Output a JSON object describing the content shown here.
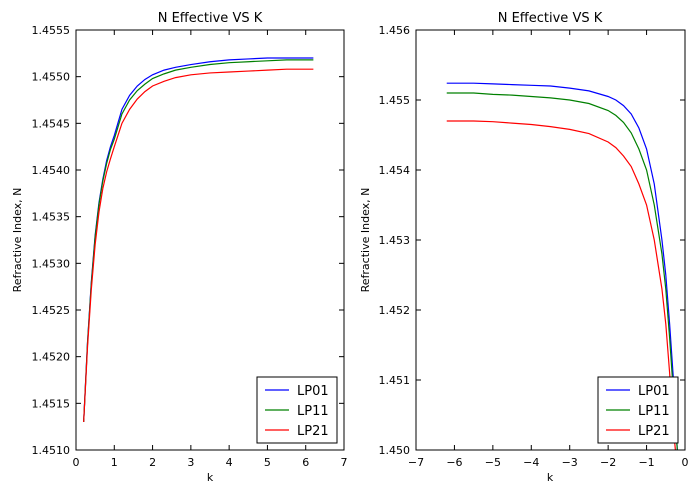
{
  "chart_data": [
    {
      "type": "line",
      "title": "N Effective VS K",
      "xlabel": "k",
      "ylabel": "Refractive Index, N",
      "xlim": [
        0,
        7
      ],
      "ylim": [
        1.451,
        1.4555
      ],
      "xticks": [
        "0",
        "1",
        "2",
        "3",
        "4",
        "5",
        "6",
        "7"
      ],
      "yticks": [
        "1.4510",
        "1.4515",
        "1.4520",
        "1.4525",
        "1.4530",
        "1.4535",
        "1.4540",
        "1.4545",
        "1.4550",
        "1.4555"
      ],
      "legend_position": "lower-right",
      "grid": false,
      "x": [
        0.2,
        0.3,
        0.4,
        0.5,
        0.6,
        0.7,
        0.8,
        0.9,
        1.0,
        1.2,
        1.4,
        1.6,
        1.8,
        2.0,
        2.3,
        2.6,
        3.0,
        3.5,
        4.0,
        4.5,
        5.0,
        5.5,
        6.2
      ],
      "series": [
        {
          "name": "LP01",
          "color": "#0000ff",
          "values": [
            1.4513,
            1.45215,
            1.4528,
            1.4533,
            1.45365,
            1.4539,
            1.4541,
            1.45425,
            1.45437,
            1.45465,
            1.4548,
            1.4549,
            1.45497,
            1.45502,
            1.45507,
            1.4551,
            1.45513,
            1.45516,
            1.45518,
            1.45519,
            1.4552,
            1.4552,
            1.4552
          ]
        },
        {
          "name": "LP11",
          "color": "#008000",
          "values": [
            1.4513,
            1.45214,
            1.45278,
            1.45328,
            1.45363,
            1.45388,
            1.45407,
            1.45422,
            1.45433,
            1.4546,
            1.45475,
            1.45485,
            1.45492,
            1.45498,
            1.45503,
            1.45507,
            1.4551,
            1.45513,
            1.45515,
            1.45516,
            1.45517,
            1.45518,
            1.45518
          ]
        },
        {
          "name": "LP21",
          "color": "#ff0000",
          "values": [
            1.4513,
            1.4521,
            1.45272,
            1.4532,
            1.45355,
            1.4538,
            1.45398,
            1.45412,
            1.45425,
            1.4545,
            1.45465,
            1.45476,
            1.45484,
            1.4549,
            1.45495,
            1.45499,
            1.45502,
            1.45504,
            1.45505,
            1.45506,
            1.45507,
            1.45508,
            1.45508
          ]
        }
      ]
    },
    {
      "type": "line",
      "title": "N Effective VS K",
      "xlabel": "k",
      "ylabel": "Refractive Index, N",
      "xlim": [
        -7,
        0
      ],
      "ylim": [
        1.45,
        1.456
      ],
      "xticks": [
        "−7",
        "−6",
        "−5",
        "−4",
        "−3",
        "−2",
        "−1",
        "0"
      ],
      "yticks": [
        "1.450",
        "1.451",
        "1.452",
        "1.453",
        "1.454",
        "1.455",
        "1.456"
      ],
      "legend_position": "lower-right",
      "grid": false,
      "x": [
        -6.2,
        -5.5,
        -5.0,
        -4.5,
        -4.0,
        -3.5,
        -3.0,
        -2.5,
        -2.0,
        -1.8,
        -1.6,
        -1.4,
        -1.2,
        -1.0,
        -0.8,
        -0.6,
        -0.5,
        -0.4,
        -0.3,
        -0.2
      ],
      "series": [
        {
          "name": "LP01",
          "color": "#0000ff",
          "values": [
            1.45524,
            1.45524,
            1.45523,
            1.45522,
            1.45521,
            1.4552,
            1.45517,
            1.45513,
            1.45505,
            1.455,
            1.45492,
            1.4548,
            1.4546,
            1.4543,
            1.4538,
            1.453,
            1.4525,
            1.4518,
            1.451,
            1.45
          ]
        },
        {
          "name": "LP11",
          "color": "#008000",
          "values": [
            1.4551,
            1.4551,
            1.45508,
            1.45507,
            1.45505,
            1.45503,
            1.455,
            1.45495,
            1.45485,
            1.45478,
            1.45468,
            1.45453,
            1.4543,
            1.454,
            1.4535,
            1.4528,
            1.4523,
            1.4516,
            1.4508,
            1.45
          ]
        },
        {
          "name": "LP21",
          "color": "#ff0000",
          "values": [
            1.4547,
            1.4547,
            1.45469,
            1.45467,
            1.45465,
            1.45462,
            1.45458,
            1.45452,
            1.4544,
            1.45432,
            1.4542,
            1.45405,
            1.4538,
            1.4535,
            1.453,
            1.4523,
            1.4518,
            1.4511,
            1.4503,
            1.4497
          ]
        }
      ]
    }
  ]
}
